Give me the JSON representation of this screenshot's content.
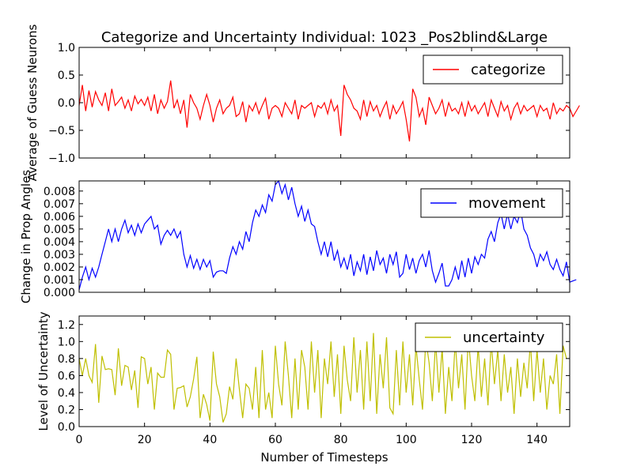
{
  "chart_data": {
    "type": "line",
    "title": "Categorize and Uncertainty Individual: 1023 _Pos2blind&Large",
    "xlabel": "Number of Timesteps",
    "xlim": [
      0,
      150
    ],
    "x_ticks": [
      "0",
      "20",
      "40",
      "60",
      "80",
      "100",
      "120",
      "140"
    ],
    "panels": [
      {
        "name": "categorize-panel",
        "ylabel": "Average of Guess Neurons",
        "ylim": [
          -1.0,
          1.0
        ],
        "y_ticks": [
          "−1.0",
          "−0.5",
          "0.0",
          "0.5",
          "1.0"
        ],
        "legend": "top-right",
        "series": [
          {
            "name": "categorize",
            "color": "#ff0000",
            "values": [
              -0.05,
              0.32,
              -0.15,
              0.22,
              -0.08,
              0.2,
              0.05,
              -0.05,
              0.18,
              -0.15,
              0.25,
              -0.05,
              0.02,
              0.1,
              -0.1,
              0.05,
              -0.15,
              0.12,
              -0.02,
              0.06,
              -0.05,
              0.1,
              -0.15,
              0.15,
              -0.2,
              0.05,
              -0.1,
              0.02,
              0.4,
              -0.1,
              0.05,
              -0.2,
              0.05,
              -0.45,
              0.15,
              0.0,
              -0.1,
              -0.3,
              -0.05,
              0.15,
              -0.05,
              -0.35,
              -0.1,
              0.05,
              -0.2,
              -0.1,
              -0.05,
              0.1,
              -0.25,
              -0.2,
              0.02,
              -0.35,
              -0.05,
              -0.15,
              0.0,
              -0.2,
              -0.05,
              0.08,
              -0.3,
              -0.1,
              -0.05,
              -0.1,
              -0.25,
              0.0,
              -0.1,
              -0.2,
              0.05,
              -0.3,
              -0.05,
              -0.1,
              -0.05,
              0.0,
              -0.25,
              -0.05,
              -0.1,
              0.0,
              -0.2,
              0.05,
              -0.15,
              -0.05,
              -0.6,
              0.32,
              0.15,
              0.05,
              -0.1,
              -0.15,
              -0.3,
              0.05,
              -0.25,
              0.02,
              -0.15,
              -0.05,
              -0.25,
              -0.1,
              0.02,
              -0.3,
              -0.05,
              -0.2,
              -0.1,
              0.02,
              -0.3,
              -0.7,
              0.25,
              0.1,
              -0.25,
              -0.1,
              -0.4,
              0.1,
              -0.05,
              -0.2,
              -0.1,
              0.05,
              -0.25,
              0.0,
              -0.15,
              -0.1,
              -0.2,
              0.0,
              -0.25,
              0.02,
              -0.15,
              -0.05,
              -0.2,
              -0.1,
              0.0,
              -0.25,
              0.05,
              -0.1,
              -0.25,
              0.02,
              -0.15,
              -0.05,
              -0.3,
              -0.1,
              0.0,
              -0.2,
              -0.05,
              -0.15,
              -0.1,
              -0.05,
              -0.25,
              -0.05,
              -0.15,
              -0.1,
              -0.3,
              0.0,
              -0.2,
              -0.1,
              -0.15,
              -0.05,
              -0.1,
              -0.25,
              -0.15,
              -0.05
            ]
          }
        ]
      },
      {
        "name": "movement-panel",
        "ylabel": "Change in Prop Angles",
        "ylim": [
          0.0,
          0.0088
        ],
        "y_ticks": [
          "0.000",
          "0.001",
          "0.002",
          "0.003",
          "0.004",
          "0.005",
          "0.006",
          "0.007",
          "0.008"
        ],
        "legend": "top-right",
        "series": [
          {
            "name": "movement",
            "color": "#0000ff",
            "values": [
              0.0002,
              0.0012,
              0.002,
              0.001,
              0.0019,
              0.0012,
              0.002,
              0.003,
              0.004,
              0.005,
              0.004,
              0.005,
              0.004,
              0.005,
              0.0057,
              0.0047,
              0.0053,
              0.0045,
              0.0054,
              0.0047,
              0.0054,
              0.0057,
              0.006,
              0.005,
              0.0053,
              0.0038,
              0.0045,
              0.0049,
              0.0045,
              0.005,
              0.0043,
              0.0048,
              0.003,
              0.002,
              0.0029,
              0.0019,
              0.0026,
              0.0018,
              0.0026,
              0.002,
              0.0025,
              0.0012,
              0.0016,
              0.0017,
              0.0017,
              0.0015,
              0.0027,
              0.0036,
              0.003,
              0.004,
              0.0034,
              0.0048,
              0.004,
              0.0055,
              0.0065,
              0.006,
              0.0069,
              0.0063,
              0.0077,
              0.0072,
              0.0085,
              0.0088,
              0.0078,
              0.0085,
              0.0073,
              0.0083,
              0.007,
              0.006,
              0.0068,
              0.0056,
              0.0065,
              0.0054,
              0.0052,
              0.004,
              0.003,
              0.004,
              0.0028,
              0.004,
              0.0025,
              0.0033,
              0.002,
              0.0027,
              0.0018,
              0.003,
              0.0013,
              0.0024,
              0.0017,
              0.003,
              0.0014,
              0.0028,
              0.0017,
              0.0033,
              0.0022,
              0.0027,
              0.0015,
              0.003,
              0.0022,
              0.0032,
              0.0012,
              0.0015,
              0.003,
              0.0018,
              0.0027,
              0.0015,
              0.0025,
              0.003,
              0.002,
              0.0033,
              0.0017,
              0.0008,
              0.0015,
              0.0023,
              0.0005,
              0.0005,
              0.001,
              0.002,
              0.001,
              0.0025,
              0.0012,
              0.0027,
              0.0015,
              0.0028,
              0.0022,
              0.003,
              0.0027,
              0.0042,
              0.0048,
              0.004,
              0.0055,
              0.0062,
              0.005,
              0.0062,
              0.005,
              0.006,
              0.0055,
              0.0065,
              0.005,
              0.0045,
              0.0035,
              0.003,
              0.002,
              0.003,
              0.0025,
              0.0032,
              0.0022,
              0.0018,
              0.0026,
              0.0018,
              0.0013,
              0.0024,
              0.0008,
              0.0009,
              0.001
            ]
          }
        ]
      },
      {
        "name": "uncertainty-panel",
        "ylabel": "Level of Uncertainty",
        "ylim": [
          0.0,
          1.3
        ],
        "y_ticks": [
          "0.0",
          "0.2",
          "0.4",
          "0.6",
          "0.8",
          "1.0",
          "1.2"
        ],
        "legend": "top-right",
        "series": [
          {
            "name": "uncertainty",
            "color": "#bfbf00",
            "values": [
              0.8,
              0.6,
              0.8,
              0.6,
              0.52,
              0.97,
              0.28,
              0.83,
              0.67,
              0.68,
              0.67,
              0.37,
              0.92,
              0.48,
              0.72,
              0.7,
              0.43,
              0.66,
              0.22,
              0.82,
              0.8,
              0.5,
              0.7,
              0.2,
              0.63,
              0.58,
              0.58,
              0.9,
              0.85,
              0.2,
              0.45,
              0.46,
              0.48,
              0.23,
              0.35,
              0.56,
              0.82,
              0.1,
              0.38,
              0.26,
              0.07,
              0.88,
              0.5,
              0.35,
              0.05,
              0.15,
              0.47,
              0.32,
              0.8,
              0.44,
              0.1,
              0.5,
              0.45,
              0.2,
              0.7,
              0.1,
              0.9,
              0.2,
              0.4,
              0.1,
              0.95,
              0.5,
              0.25,
              1.0,
              0.6,
              0.1,
              0.8,
              0.2,
              0.9,
              0.7,
              0.2,
              1.0,
              0.4,
              0.9,
              0.1,
              0.8,
              0.5,
              1.0,
              0.35,
              0.85,
              0.15,
              0.95,
              0.55,
              0.3,
              1.05,
              0.4,
              0.9,
              0.2,
              1.0,
              0.3,
              1.1,
              0.15,
              0.85,
              0.45,
              1.05,
              0.22,
              0.15,
              0.9,
              0.25,
              1.0,
              0.4,
              0.85,
              0.25,
              0.95,
              0.55,
              0.2,
              1.03,
              0.75,
              0.3,
              1.0,
              0.4,
              0.92,
              0.15,
              0.7,
              0.3,
              1.0,
              0.45,
              0.85,
              0.2,
              1.05,
              0.6,
              0.3,
              0.95,
              0.35,
              0.8,
              0.25,
              1.0,
              0.5,
              0.9,
              0.3,
              0.85,
              0.4,
              0.7,
              0.15,
              0.8,
              0.35,
              0.75,
              0.45,
              1.0,
              0.3,
              0.9,
              0.4,
              0.8,
              0.2,
              0.6,
              0.5,
              0.85,
              0.15,
              0.95,
              0.8
            ]
          }
        ]
      }
    ]
  }
}
